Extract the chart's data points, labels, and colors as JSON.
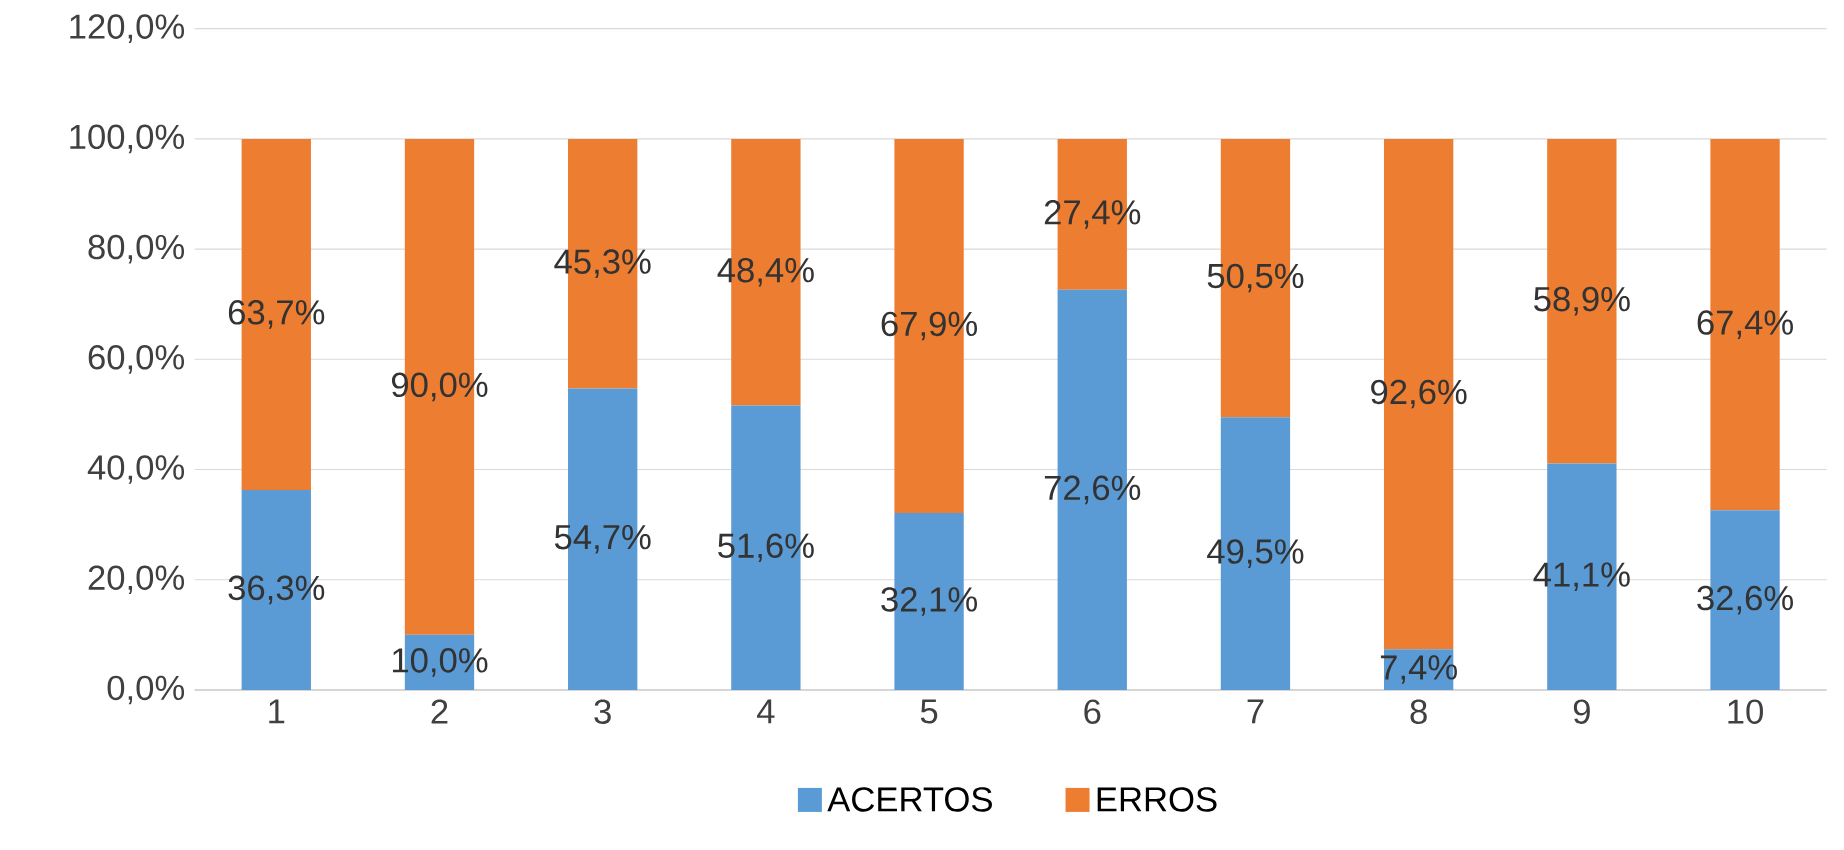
{
  "chart_data": {
    "type": "bar",
    "stacked": true,
    "categories": [
      "1",
      "2",
      "3",
      "4",
      "5",
      "6",
      "7",
      "8",
      "9",
      "10"
    ],
    "series": [
      {
        "name": "ACERTOS",
        "color": "#5b9bd5",
        "values": [
          36.3,
          10.0,
          54.7,
          51.6,
          32.1,
          72.6,
          49.5,
          7.4,
          41.1,
          32.6
        ],
        "value_labels": [
          "36,3%",
          "10,0%",
          "54,7%",
          "51,6%",
          "32,1%",
          "72,6%",
          "49,5%",
          "7,4%",
          "41,1%",
          "32,6%"
        ]
      },
      {
        "name": "ERROS",
        "color": "#ed7d31",
        "values": [
          63.7,
          90.0,
          45.3,
          48.4,
          67.9,
          27.4,
          50.5,
          92.6,
          58.9,
          67.4
        ],
        "value_labels": [
          "63,7%",
          "90,0%",
          "45,3%",
          "48,4%",
          "67,9%",
          "27,4%",
          "50,5%",
          "92,6%",
          "58,9%",
          "67,4%"
        ]
      }
    ],
    "ylim": [
      0,
      120
    ],
    "yticks": [
      {
        "value": 0,
        "label": "0,0%"
      },
      {
        "value": 20,
        "label": "20,0%"
      },
      {
        "value": 40,
        "label": "40,0%"
      },
      {
        "value": 60,
        "label": "60,0%"
      },
      {
        "value": 80,
        "label": "80,0%"
      },
      {
        "value": 100,
        "label": "100,0%"
      },
      {
        "value": 120,
        "label": "120,0%"
      }
    ],
    "grid": "y",
    "legend": "bottom"
  }
}
